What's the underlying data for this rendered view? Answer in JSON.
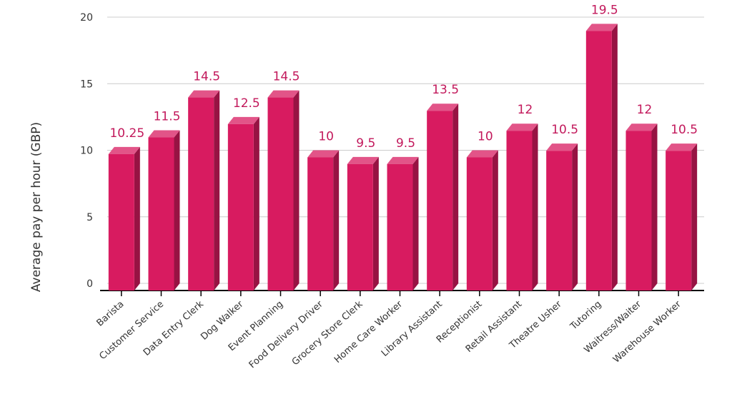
{
  "chart_data": {
    "type": "bar3d",
    "y_label": "Average pay per hour (GBP)",
    "categories": [
      "Barista",
      "Customer Service",
      "Data Entry Clerk",
      "Dog Walker",
      "Event Planning",
      "Food Delivery Driver",
      "Grocery Store Clerk",
      "Home Care Worker",
      "Library Assistant",
      "Receptionist",
      "Retail Assistant",
      "Theatre Usher",
      "Tutoring",
      "Waitress/Waiter",
      "Warehouse Worker"
    ],
    "values": [
      10.25,
      11.5,
      14.5,
      12.5,
      14.5,
      10,
      9.5,
      9.5,
      13.5,
      10,
      12,
      10.5,
      19.5,
      12,
      10.5
    ],
    "color": "#d81b60",
    "ylim": [
      0,
      20
    ],
    "yticks": [
      0,
      5,
      10,
      15,
      20
    ],
    "grid": true
  }
}
